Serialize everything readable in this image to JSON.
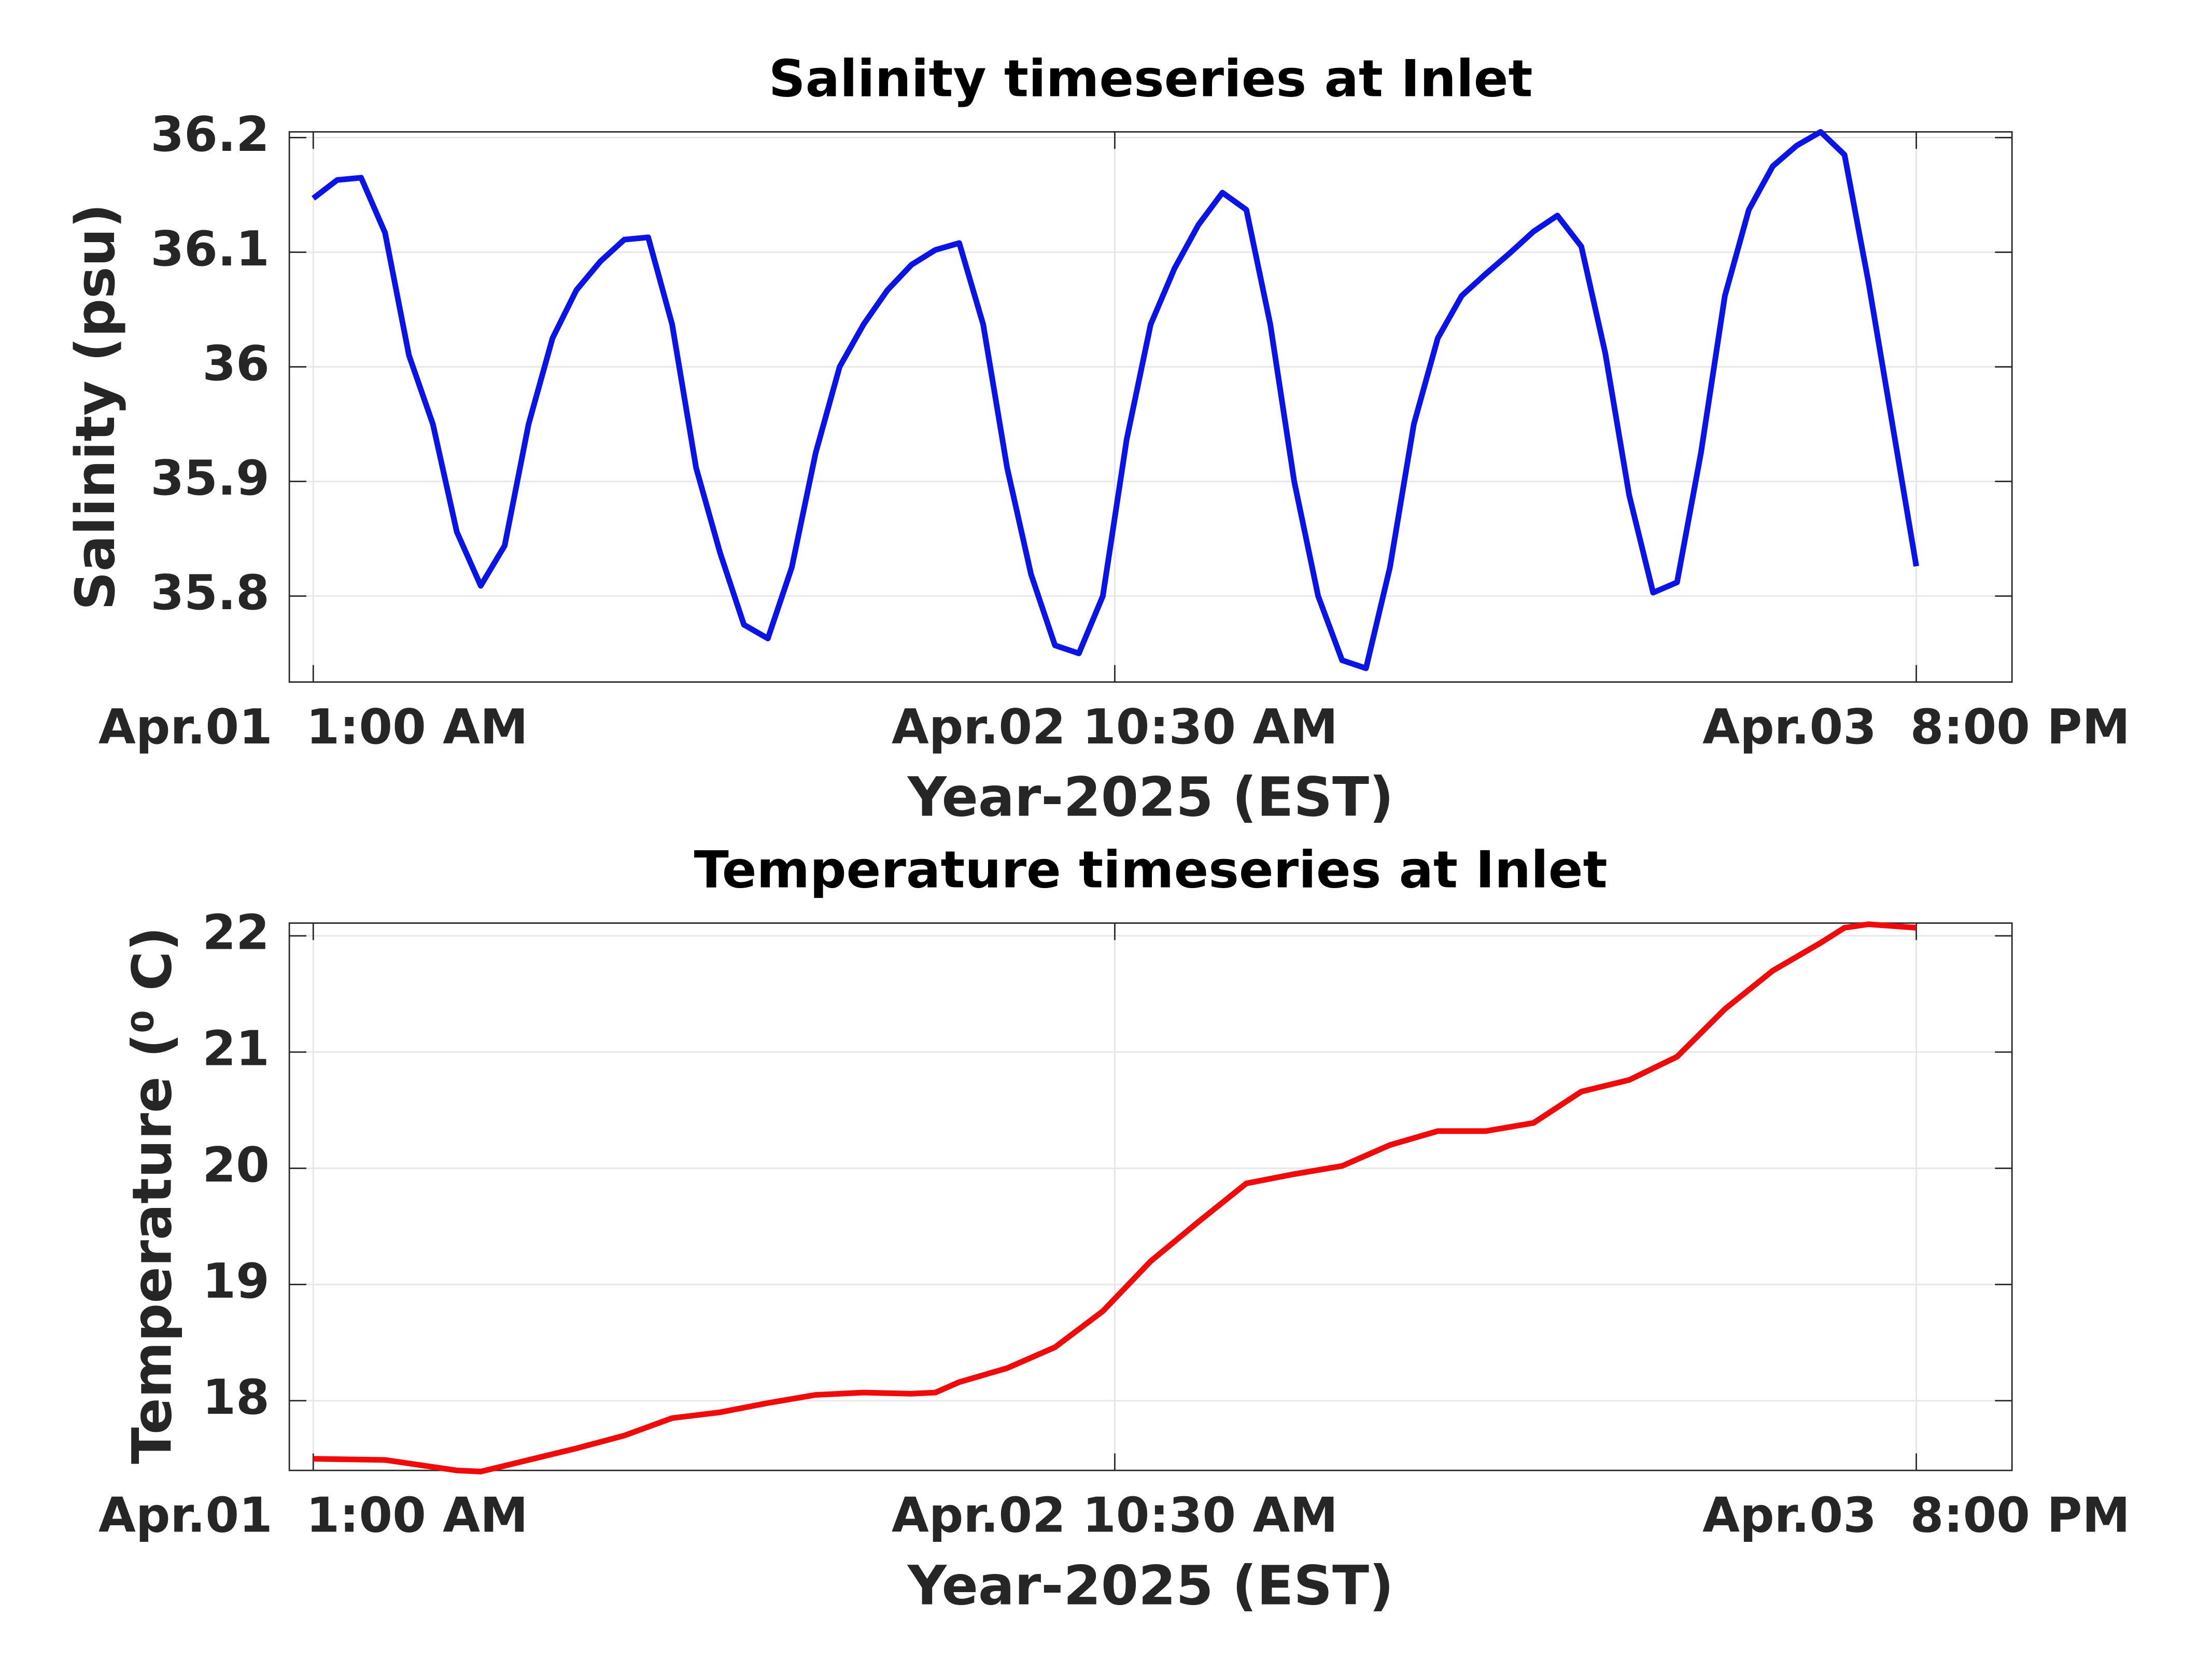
{
  "chart_data": [
    {
      "type": "line",
      "title": "Salinity timeseries at Inlet",
      "xlabel": "Year-2025 (EST)",
      "ylabel": "Salinity (psu)",
      "color": "#0a14e6",
      "grid": true,
      "xlim": [
        "2025-04-01 00:00",
        "2025-04-04 00:00"
      ],
      "xticks": [
        {
          "value": "2025-04-01 01:00",
          "label": "Apr.01  1:00 AM"
        },
        {
          "value": "2025-04-02 10:30",
          "label": "Apr.02 10:30 AM"
        },
        {
          "value": "2025-04-03 20:00",
          "label": "Apr.03  8:00 PM"
        }
      ],
      "ylim": [
        35.725,
        36.205
      ],
      "yticks": [
        35.8,
        35.9,
        36,
        36.1,
        36.2
      ],
      "x": [
        "2025-04-01 01:00",
        "2025-04-01 02:00",
        "2025-04-01 03:00",
        "2025-04-01 04:00",
        "2025-04-01 05:00",
        "2025-04-01 06:00",
        "2025-04-01 07:00",
        "2025-04-01 08:00",
        "2025-04-01 09:00",
        "2025-04-01 10:00",
        "2025-04-01 11:00",
        "2025-04-01 12:00",
        "2025-04-01 13:00",
        "2025-04-01 14:00",
        "2025-04-01 15:00",
        "2025-04-01 16:00",
        "2025-04-01 17:00",
        "2025-04-01 18:00",
        "2025-04-01 19:00",
        "2025-04-01 20:00",
        "2025-04-01 21:00",
        "2025-04-01 22:00",
        "2025-04-01 23:00",
        "2025-04-02 00:00",
        "2025-04-02 01:00",
        "2025-04-02 02:00",
        "2025-04-02 03:00",
        "2025-04-02 04:00",
        "2025-04-02 05:00",
        "2025-04-02 06:00",
        "2025-04-02 07:00",
        "2025-04-02 08:00",
        "2025-04-02 09:00",
        "2025-04-02 10:00",
        "2025-04-02 11:00",
        "2025-04-02 12:00",
        "2025-04-02 13:00",
        "2025-04-02 14:00",
        "2025-04-02 15:00",
        "2025-04-02 16:00",
        "2025-04-02 17:00",
        "2025-04-02 18:00",
        "2025-04-02 19:00",
        "2025-04-02 20:00",
        "2025-04-02 21:00",
        "2025-04-02 22:00",
        "2025-04-02 23:00",
        "2025-04-03 00:00",
        "2025-04-03 01:00",
        "2025-04-03 02:00",
        "2025-04-03 03:00",
        "2025-04-03 04:00",
        "2025-04-03 05:00",
        "2025-04-03 06:00",
        "2025-04-03 07:00",
        "2025-04-03 08:00",
        "2025-04-03 09:00",
        "2025-04-03 10:00",
        "2025-04-03 11:00",
        "2025-04-03 12:00",
        "2025-04-03 13:00",
        "2025-04-03 14:00",
        "2025-04-03 15:00",
        "2025-04-03 16:00",
        "2025-04-03 17:00",
        "2025-04-03 18:00",
        "2025-04-03 19:00",
        "2025-04-03 20:00"
      ],
      "values": [
        36.147,
        36.163,
        36.165,
        36.117,
        36.01,
        35.95,
        35.856,
        35.809,
        35.844,
        35.95,
        36.025,
        36.067,
        36.092,
        36.111,
        36.113,
        36.037,
        35.912,
        35.838,
        35.775,
        35.763,
        35.825,
        35.925,
        36.0,
        36.037,
        36.067,
        36.089,
        36.102,
        36.108,
        36.037,
        35.912,
        35.819,
        35.757,
        35.75,
        35.8,
        35.937,
        36.037,
        36.086,
        36.124,
        36.152,
        36.137,
        36.037,
        35.9,
        35.8,
        35.744,
        35.737,
        35.825,
        35.95,
        36.025,
        36.062,
        36.081,
        36.099,
        36.118,
        36.132,
        36.105,
        36.012,
        35.888,
        35.803,
        35.812,
        35.925,
        36.062,
        36.137,
        36.175,
        36.193,
        36.205,
        36.185,
        36.074,
        35.95,
        35.826
      ]
    },
    {
      "type": "line",
      "title": "Temperature timeseries at Inlet",
      "xlabel": "Year-2025 (EST)",
      "ylabel": "Temperature (⁰ C)",
      "color": "#f00a0a",
      "grid": true,
      "xlim": [
        "2025-04-01 00:00",
        "2025-04-04 00:00"
      ],
      "xticks": [
        {
          "value": "2025-04-01 01:00",
          "label": "Apr.01  1:00 AM"
        },
        {
          "value": "2025-04-02 10:30",
          "label": "Apr.02 10:30 AM"
        },
        {
          "value": "2025-04-03 20:00",
          "label": "Apr.03  8:00 PM"
        }
      ],
      "ylim": [
        17.4,
        22.11
      ],
      "yticks": [
        18,
        19,
        20,
        21,
        22
      ],
      "x": [
        "2025-04-01 01:00",
        "2025-04-01 04:00",
        "2025-04-01 07:00",
        "2025-04-01 08:00",
        "2025-04-01 10:00",
        "2025-04-01 12:00",
        "2025-04-01 14:00",
        "2025-04-01 16:00",
        "2025-04-01 18:00",
        "2025-04-01 20:00",
        "2025-04-01 22:00",
        "2025-04-02 00:00",
        "2025-04-02 02:00",
        "2025-04-02 03:00",
        "2025-04-02 04:00",
        "2025-04-02 06:00",
        "2025-04-02 08:00",
        "2025-04-02 10:00",
        "2025-04-02 12:00",
        "2025-04-02 14:00",
        "2025-04-02 16:00",
        "2025-04-02 18:00",
        "2025-04-02 20:00",
        "2025-04-02 22:00",
        "2025-04-03 00:00",
        "2025-04-03 02:00",
        "2025-04-03 04:00",
        "2025-04-03 06:00",
        "2025-04-03 08:00",
        "2025-04-03 10:00",
        "2025-04-03 12:00",
        "2025-04-03 14:00",
        "2025-04-03 16:00",
        "2025-04-03 17:00",
        "2025-04-03 18:00",
        "2025-04-03 20:00"
      ],
      "values": [
        17.5,
        17.49,
        17.4,
        17.39,
        17.49,
        17.59,
        17.7,
        17.85,
        17.9,
        17.98,
        18.05,
        18.07,
        18.06,
        18.07,
        18.16,
        18.28,
        18.46,
        18.77,
        19.2,
        19.54,
        19.87,
        19.95,
        20.02,
        20.2,
        20.32,
        20.32,
        20.39,
        20.66,
        20.76,
        20.96,
        21.37,
        21.7,
        21.94,
        22.07,
        22.1,
        22.07
      ]
    }
  ]
}
